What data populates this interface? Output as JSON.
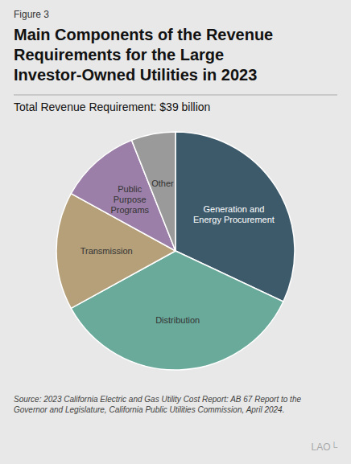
{
  "chart_data": {
    "type": "pie",
    "title": "Main Components of the Revenue\nRequirements for the Large\nInvestor-Owned Utilities in 2023",
    "subtitle": "Total Revenue Requirement: $39 billion",
    "annotations": [
      "Figure 3",
      "Source: 2023 California Electric and Gas Utility Cost Report: AB 67 Report to the\nGovernor and Legislature, California Public Utilities Commission, April 2024.",
      "LAO└"
    ],
    "categories": [
      "Generation and\nEnergy Procurement",
      "Distribution",
      "Transmission",
      "Public\nPurpose\nPrograms",
      "Other"
    ],
    "values": [
      32,
      35,
      16,
      11,
      6
    ],
    "colors": [
      "#3d5a6b",
      "#6aaa9b",
      "#b5a07a",
      "#9b7fa8",
      "#9a9a9a"
    ]
  }
}
